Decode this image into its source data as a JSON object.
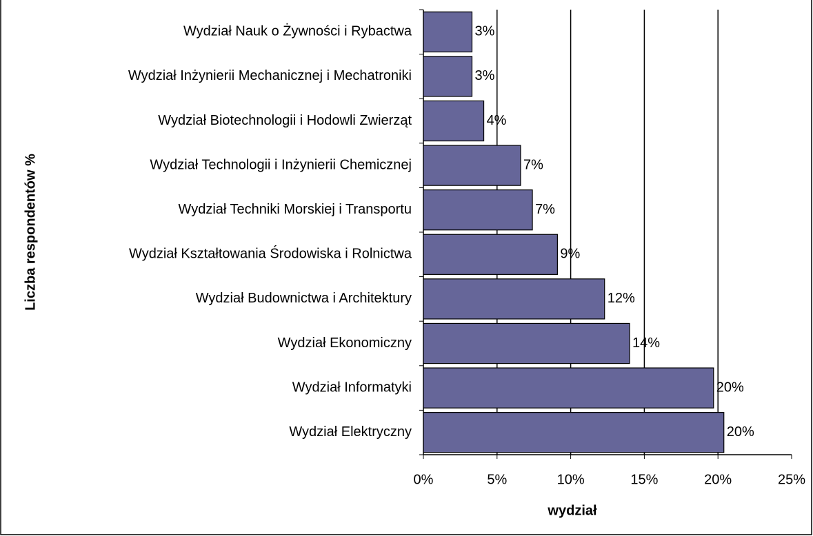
{
  "chart_data": {
    "type": "bar",
    "orientation": "horizontal",
    "x_label": "wydział",
    "y_label": "Liczba respondentów %",
    "categories": [
      "Wydział Nauk o Żywności i Rybactwa",
      "Wydział Inżynierii Mechanicznej i Mechatroniki",
      "Wydział Biotechnologii i Hodowli Zwierząt",
      "Wydział Technologii i Inżynierii Chemicznej",
      "Wydział Techniki Morskiej i Transportu",
      "Wydział Kształtowania Środowiska i Rolnictwa",
      "Wydział Budownictwa i Architektury",
      "Wydział Ekonomiczny",
      "Wydział Informatyki",
      "Wydział Elektryczny"
    ],
    "values": [
      3.3,
      3.3,
      4.1,
      6.6,
      7.4,
      9.1,
      12.3,
      14.0,
      19.7,
      20.4
    ],
    "value_labels": [
      "3%",
      "3%",
      "4%",
      "7%",
      "7%",
      "9%",
      "12%",
      "14%",
      "20%",
      "20%"
    ],
    "color": "#666699",
    "xlim": [
      0,
      25
    ],
    "xticks": [
      {
        "value": 0,
        "label": "0%"
      },
      {
        "value": 5,
        "label": "5%"
      },
      {
        "value": 10,
        "label": "10%"
      },
      {
        "value": 15,
        "label": "15%"
      },
      {
        "value": 20,
        "label": "20%"
      },
      {
        "value": 25,
        "label": "25%"
      }
    ],
    "grid": true
  }
}
